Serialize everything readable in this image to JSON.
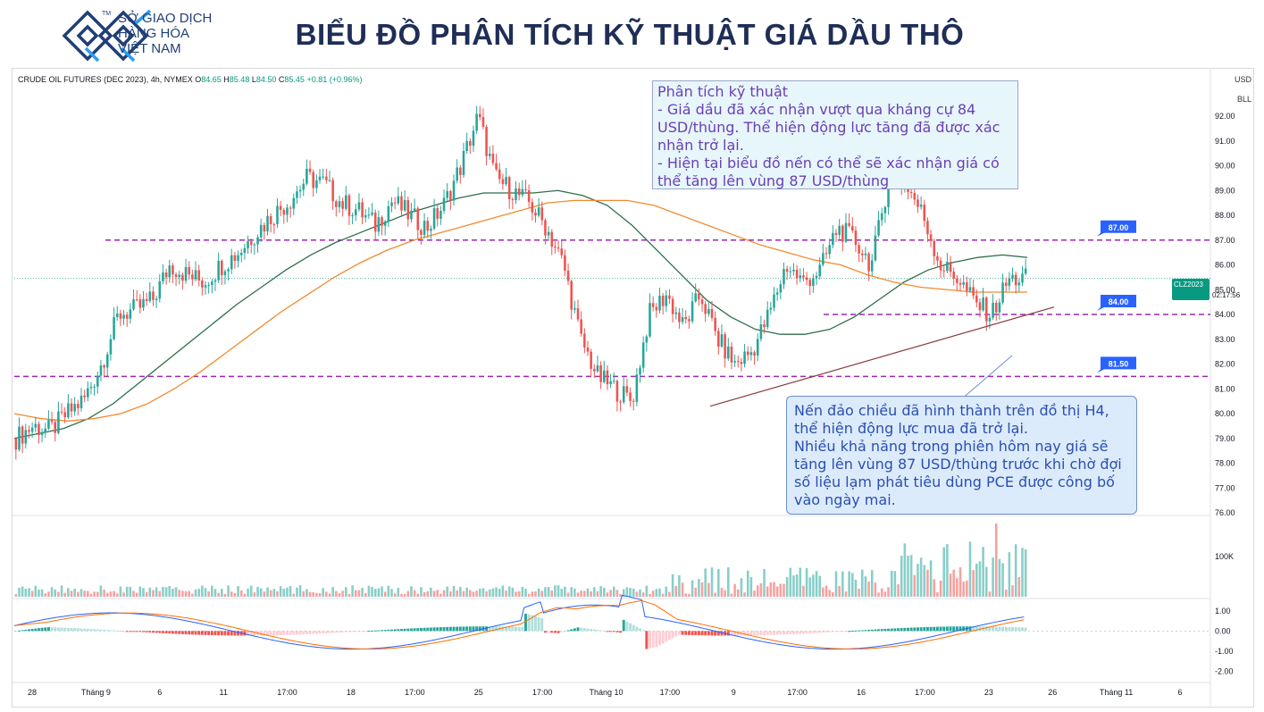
{
  "brand": {
    "lines": [
      "SỞ GIAO DỊCH",
      "HÀNG HÓA",
      "VIỆT NAM"
    ],
    "tm": "TM",
    "color": "#1f3f75"
  },
  "page_title": "BIỂU ĐỒ PHÂN TÍCH KỸ THUẬT GIÁ DẦU THÔ",
  "legend": {
    "symbol": "CRUDE OIL FUTURES (DEC 2023), 4h, NYMEX",
    "open_label": "O",
    "open": "84.65",
    "high_label": "H",
    "high": "85.48",
    "low_label": "L",
    "low": "84.50",
    "close_label": "C",
    "close": "85.45",
    "change": "+0.81 (+0.96%)"
  },
  "scale_buttons": [
    "USD",
    "BLL"
  ],
  "price_tag": {
    "symbol": "CLZ2023",
    "price": "85.45",
    "countdown": "02:17:56"
  },
  "annotations": {
    "top": "Phân tích kỹ thuật\n- Giá dầu đã xác nhận vượt qua kháng cự 84 USD/thùng. Thể hiện động lực tăng đã được xác nhận trở lại.\n- Hiện tại biểu đồ nến có thể sẽ xác nhận giá có thể tăng lên vùng 87 USD/thùng",
    "bottom": "Nến đảo chiều đã hình thành trên đồ thị H4, thể hiện động lực mua đã trở lại.\nNhiều khả năng trong phiên hôm nay giá sẽ tăng lên vùng 87 USD/thùng trước khi chờ đợi số liệu lạm phát tiêu dùng PCE được công bố vào ngày mai."
  },
  "chart_data": {
    "type": "candlestick",
    "title": "",
    "ylim": [
      76,
      92.5
    ],
    "y_ticks": [
      "92.00",
      "91.00",
      "90.00",
      "89.00",
      "88.00",
      "87.00",
      "86.00",
      "85.00",
      "84.00",
      "83.00",
      "82.00",
      "81.00",
      "80.00",
      "79.00",
      "78.00",
      "77.00",
      "76.00"
    ],
    "x_ticks": [
      "28",
      "Tháng 9",
      "6",
      "11",
      "17:00",
      "18",
      "17:00",
      "25",
      "17:00",
      "Tháng 10",
      "17:00",
      "9",
      "17:00",
      "16",
      "17:00",
      "23",
      "26",
      "Tháng 11",
      "6"
    ],
    "levels": [
      {
        "label": "87.00",
        "value": 87.0
      },
      {
        "label": "84.00",
        "value": 84.0
      },
      {
        "label": "81.50",
        "value": 81.5
      }
    ],
    "last_price": 85.45,
    "close_path": [
      79.0,
      79.5,
      79.3,
      80.0,
      80.6,
      82.0,
      84.0,
      84.2,
      84.6,
      86.0,
      85.6,
      85.3,
      86.0,
      86.5,
      87.3,
      88.0,
      88.6,
      89.5,
      89.3,
      88.5,
      88.2,
      87.6,
      88.6,
      88.0,
      87.5,
      88.4,
      90.0,
      92.0,
      89.5,
      89.0,
      88.5,
      87.5,
      86.0,
      83.0,
      81.5,
      81.0,
      80.5,
      84.0,
      84.8,
      83.5,
      84.8,
      83.0,
      82.0,
      82.5,
      84.0,
      86.0,
      85.3,
      85.8,
      87.5,
      87.0,
      86.0,
      89.5,
      89.3,
      88.0,
      86.0,
      85.5,
      84.5,
      84.0,
      85.4,
      85.45
    ],
    "moving_averages": [
      {
        "name": "",
        "color": "#2e6e4a",
        "values": [
          79.0,
          79.2,
          79.4,
          79.8,
          80.4,
          81.2,
          82.0,
          82.8,
          83.6,
          84.4,
          85.1,
          85.8,
          86.4,
          86.9,
          87.3,
          87.7,
          88.1,
          88.4,
          88.7,
          88.9,
          88.9,
          88.9,
          89.0,
          88.8,
          88.4,
          87.6,
          86.6,
          85.6,
          84.6,
          83.9,
          83.4,
          83.2,
          83.2,
          83.4,
          83.9,
          84.6,
          85.3,
          85.8,
          86.1,
          86.3,
          86.4,
          86.3
        ]
      },
      {
        "name": "",
        "color": "#f28a30",
        "values": [
          80.0,
          79.8,
          79.7,
          79.8,
          80.0,
          80.4,
          81.0,
          81.7,
          82.5,
          83.3,
          84.1,
          84.8,
          85.5,
          86.1,
          86.6,
          87.0,
          87.3,
          87.6,
          87.9,
          88.2,
          88.5,
          88.6,
          88.6,
          88.6,
          88.4,
          88.0,
          87.6,
          87.2,
          86.8,
          86.5,
          86.2,
          86.0,
          85.6,
          85.3,
          85.1,
          85.0,
          84.9,
          84.9,
          84.9
        ]
      }
    ],
    "trendline": {
      "from": [
        "9",
        80.3
      ],
      "to": [
        "26",
        84.6
      ]
    },
    "volume_label": "100K",
    "oscillator_ticks": [
      "1.00",
      "0.00",
      "-1.00",
      "-2.00"
    ],
    "oscillator_range": [
      -2.2,
      1.3
    ],
    "colors": {
      "up": "#26a69a",
      "down": "#ef5350",
      "level": "#9c27b0",
      "level_tag": "#2962ff"
    }
  }
}
